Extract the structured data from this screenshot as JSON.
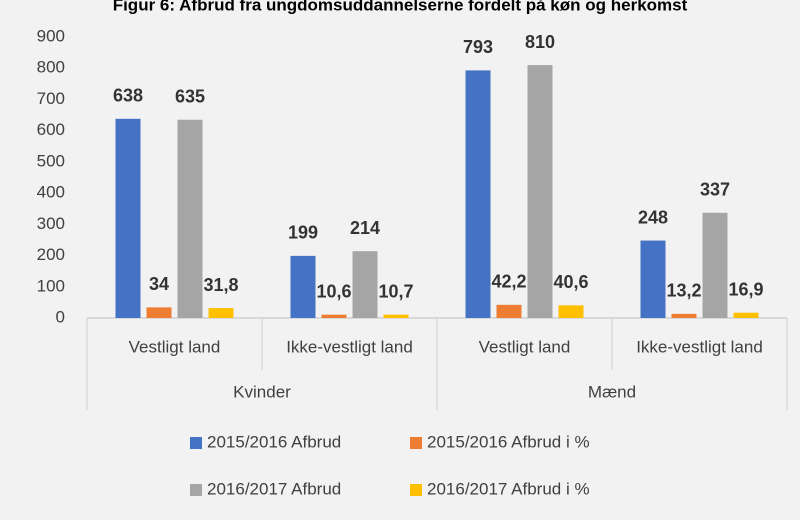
{
  "chart_data": {
    "type": "bar",
    "title": "Figur 6: Afbrud fra ungdomsuddannelserne fordelt på køn og herkomst",
    "categories": [
      "Vestligt land",
      "Ikke-vestligt land",
      "Vestligt land",
      "Ikke-vestligt land"
    ],
    "category_groups": [
      "Kvinder",
      "Mænd"
    ],
    "series": [
      {
        "name": "2015/2016 Afbrud",
        "color": "#4472c4",
        "values": [
          638,
          199,
          793,
          248
        ]
      },
      {
        "name": "2015/2016 Afbrud i %",
        "color": "#ed7d31",
        "values": [
          34,
          10.6,
          42.2,
          13.2
        ],
        "value_labels": [
          "34",
          "10,6",
          "42,2",
          "13,2"
        ]
      },
      {
        "name": "2016/2017 Afbrud",
        "color": "#a5a5a5",
        "values": [
          635,
          214,
          810,
          337
        ]
      },
      {
        "name": "2016/2017 Afbrud i %",
        "color": "#ffc000",
        "values": [
          31.8,
          10.7,
          40.6,
          16.9
        ],
        "value_labels": [
          "31,8",
          "10,7",
          "40,6",
          "16,9"
        ]
      }
    ],
    "ylim": [
      0,
      900
    ],
    "yticks": [
      0,
      100,
      200,
      300,
      400,
      500,
      600,
      700,
      800,
      900
    ],
    "grid": false
  }
}
